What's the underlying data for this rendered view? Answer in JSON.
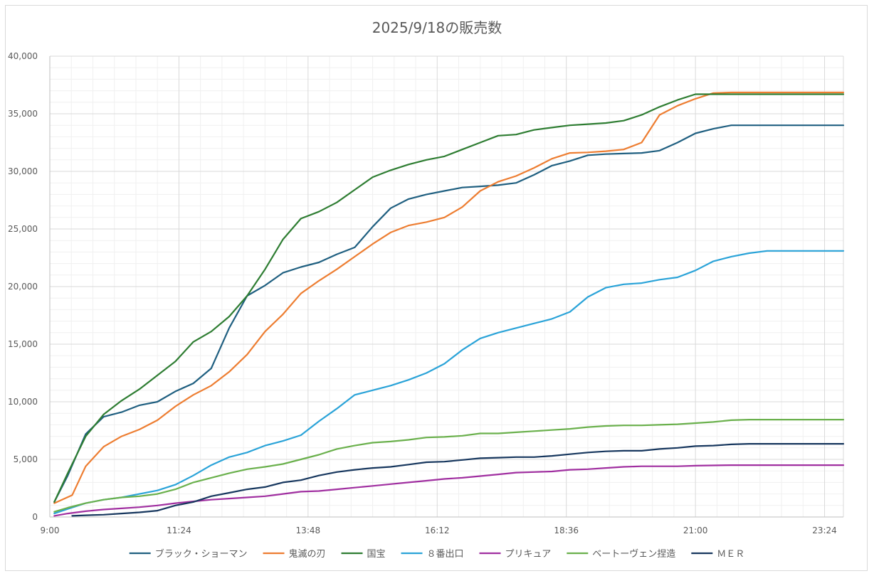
{
  "chart_data": {
    "type": "line",
    "title": "2025/9/18の販売数",
    "xlabel": "",
    "ylabel": "",
    "ylim": [
      0,
      40000
    ],
    "y_ticks": [
      "0",
      "5,000",
      "10,000",
      "15,000",
      "20,000",
      "25,000",
      "30,000",
      "35,000",
      "40,000"
    ],
    "x_ticks": [
      {
        "label": "9:00",
        "t": 0
      },
      {
        "label": "11:24",
        "t": 144
      },
      {
        "label": "13:48",
        "t": 288
      },
      {
        "label": "16:12",
        "t": 432
      },
      {
        "label": "18:36",
        "t": 576
      },
      {
        "label": "21:00",
        "t": 720
      },
      {
        "label": "23:24",
        "t": 864
      }
    ],
    "x_range": [
      0,
      885
    ],
    "grid": true,
    "legend_position": "bottom",
    "series": [
      {
        "name": "ブラック・ショーマン",
        "color": "#1f5f80",
        "points": [
          [
            5,
            1300
          ],
          [
            20,
            3600
          ],
          [
            40,
            7200
          ],
          [
            60,
            8700
          ],
          [
            80,
            9100
          ],
          [
            100,
            9700
          ],
          [
            120,
            10000
          ],
          [
            140,
            10900
          ],
          [
            160,
            11600
          ],
          [
            180,
            12900
          ],
          [
            200,
            16400
          ],
          [
            220,
            19200
          ],
          [
            240,
            20100
          ],
          [
            260,
            21200
          ],
          [
            280,
            21700
          ],
          [
            300,
            22100
          ],
          [
            320,
            22800
          ],
          [
            340,
            23400
          ],
          [
            360,
            25200
          ],
          [
            380,
            26800
          ],
          [
            400,
            27600
          ],
          [
            420,
            28000
          ],
          [
            440,
            28300
          ],
          [
            460,
            28600
          ],
          [
            480,
            28700
          ],
          [
            500,
            28800
          ],
          [
            520,
            29000
          ],
          [
            540,
            29700
          ],
          [
            560,
            30500
          ],
          [
            580,
            30900
          ],
          [
            600,
            31400
          ],
          [
            620,
            31500
          ],
          [
            640,
            31550
          ],
          [
            660,
            31600
          ],
          [
            680,
            31800
          ],
          [
            700,
            32500
          ],
          [
            720,
            33300
          ],
          [
            740,
            33700
          ],
          [
            760,
            34000
          ],
          [
            780,
            34000
          ],
          [
            800,
            34000
          ],
          [
            885,
            34000
          ]
        ]
      },
      {
        "name": "鬼滅の刃",
        "color": "#ed7d31",
        "points": [
          [
            5,
            1200
          ],
          [
            25,
            1900
          ],
          [
            40,
            4400
          ],
          [
            60,
            6100
          ],
          [
            80,
            7000
          ],
          [
            100,
            7600
          ],
          [
            120,
            8400
          ],
          [
            140,
            9600
          ],
          [
            160,
            10600
          ],
          [
            180,
            11400
          ],
          [
            200,
            12600
          ],
          [
            220,
            14100
          ],
          [
            240,
            16100
          ],
          [
            260,
            17600
          ],
          [
            280,
            19400
          ],
          [
            300,
            20500
          ],
          [
            320,
            21500
          ],
          [
            340,
            22600
          ],
          [
            360,
            23700
          ],
          [
            380,
            24700
          ],
          [
            400,
            25300
          ],
          [
            420,
            25600
          ],
          [
            440,
            26000
          ],
          [
            460,
            26900
          ],
          [
            480,
            28300
          ],
          [
            500,
            29100
          ],
          [
            520,
            29600
          ],
          [
            540,
            30300
          ],
          [
            560,
            31100
          ],
          [
            580,
            31600
          ],
          [
            600,
            31650
          ],
          [
            620,
            31750
          ],
          [
            640,
            31900
          ],
          [
            660,
            32500
          ],
          [
            680,
            34900
          ],
          [
            700,
            35700
          ],
          [
            720,
            36300
          ],
          [
            740,
            36800
          ],
          [
            760,
            36850
          ],
          [
            800,
            36850
          ],
          [
            885,
            36850
          ]
        ]
      },
      {
        "name": "国宝",
        "color": "#2e7d32",
        "points": [
          [
            5,
            1300
          ],
          [
            20,
            3800
          ],
          [
            40,
            7000
          ],
          [
            60,
            8900
          ],
          [
            80,
            10100
          ],
          [
            100,
            11100
          ],
          [
            120,
            12300
          ],
          [
            140,
            13500
          ],
          [
            160,
            15200
          ],
          [
            180,
            16100
          ],
          [
            200,
            17400
          ],
          [
            220,
            19200
          ],
          [
            240,
            21500
          ],
          [
            260,
            24100
          ],
          [
            280,
            25900
          ],
          [
            300,
            26500
          ],
          [
            320,
            27300
          ],
          [
            340,
            28400
          ],
          [
            360,
            29500
          ],
          [
            380,
            30100
          ],
          [
            400,
            30600
          ],
          [
            420,
            31000
          ],
          [
            440,
            31300
          ],
          [
            460,
            31900
          ],
          [
            480,
            32500
          ],
          [
            500,
            33100
          ],
          [
            520,
            33200
          ],
          [
            540,
            33600
          ],
          [
            560,
            33800
          ],
          [
            580,
            34000
          ],
          [
            600,
            34100
          ],
          [
            620,
            34200
          ],
          [
            640,
            34400
          ],
          [
            660,
            34900
          ],
          [
            680,
            35600
          ],
          [
            700,
            36200
          ],
          [
            720,
            36700
          ],
          [
            760,
            36700
          ],
          [
            800,
            36700
          ],
          [
            885,
            36700
          ]
        ]
      },
      {
        "name": "８番出口",
        "color": "#2aa3d8",
        "points": [
          [
            5,
            300
          ],
          [
            20,
            700
          ],
          [
            40,
            1200
          ],
          [
            60,
            1500
          ],
          [
            80,
            1700
          ],
          [
            100,
            2000
          ],
          [
            120,
            2300
          ],
          [
            140,
            2800
          ],
          [
            160,
            3600
          ],
          [
            180,
            4500
          ],
          [
            200,
            5200
          ],
          [
            220,
            5600
          ],
          [
            240,
            6200
          ],
          [
            260,
            6600
          ],
          [
            280,
            7100
          ],
          [
            300,
            8300
          ],
          [
            320,
            9400
          ],
          [
            340,
            10600
          ],
          [
            360,
            11000
          ],
          [
            380,
            11400
          ],
          [
            400,
            11900
          ],
          [
            420,
            12500
          ],
          [
            440,
            13300
          ],
          [
            460,
            14500
          ],
          [
            480,
            15500
          ],
          [
            500,
            16000
          ],
          [
            520,
            16400
          ],
          [
            540,
            16800
          ],
          [
            560,
            17200
          ],
          [
            580,
            17800
          ],
          [
            600,
            19100
          ],
          [
            620,
            19900
          ],
          [
            640,
            20200
          ],
          [
            660,
            20300
          ],
          [
            680,
            20600
          ],
          [
            700,
            20800
          ],
          [
            720,
            21400
          ],
          [
            740,
            22200
          ],
          [
            760,
            22600
          ],
          [
            780,
            22900
          ],
          [
            800,
            23100
          ],
          [
            885,
            23100
          ]
        ]
      },
      {
        "name": "プリキュア",
        "color": "#a02fa0",
        "points": [
          [
            5,
            100
          ],
          [
            20,
            300
          ],
          [
            40,
            500
          ],
          [
            60,
            650
          ],
          [
            80,
            750
          ],
          [
            100,
            850
          ],
          [
            120,
            1000
          ],
          [
            140,
            1200
          ],
          [
            160,
            1350
          ],
          [
            180,
            1500
          ],
          [
            200,
            1600
          ],
          [
            220,
            1700
          ],
          [
            240,
            1800
          ],
          [
            260,
            2000
          ],
          [
            280,
            2200
          ],
          [
            300,
            2250
          ],
          [
            320,
            2400
          ],
          [
            340,
            2550
          ],
          [
            360,
            2700
          ],
          [
            380,
            2850
          ],
          [
            400,
            3000
          ],
          [
            420,
            3150
          ],
          [
            440,
            3300
          ],
          [
            460,
            3400
          ],
          [
            480,
            3550
          ],
          [
            500,
            3700
          ],
          [
            520,
            3850
          ],
          [
            540,
            3900
          ],
          [
            560,
            3950
          ],
          [
            580,
            4100
          ],
          [
            600,
            4150
          ],
          [
            620,
            4250
          ],
          [
            640,
            4350
          ],
          [
            660,
            4400
          ],
          [
            680,
            4400
          ],
          [
            700,
            4400
          ],
          [
            720,
            4450
          ],
          [
            760,
            4500
          ],
          [
            800,
            4500
          ],
          [
            885,
            4500
          ]
        ]
      },
      {
        "name": "ベートーヴェン捏造",
        "color": "#6ab04c",
        "points": [
          [
            5,
            450
          ],
          [
            20,
            800
          ],
          [
            40,
            1200
          ],
          [
            60,
            1500
          ],
          [
            80,
            1700
          ],
          [
            100,
            1800
          ],
          [
            120,
            2000
          ],
          [
            140,
            2400
          ],
          [
            160,
            3000
          ],
          [
            180,
            3400
          ],
          [
            200,
            3800
          ],
          [
            220,
            4150
          ],
          [
            240,
            4350
          ],
          [
            260,
            4600
          ],
          [
            280,
            5000
          ],
          [
            300,
            5400
          ],
          [
            320,
            5900
          ],
          [
            340,
            6200
          ],
          [
            360,
            6450
          ],
          [
            380,
            6550
          ],
          [
            400,
            6700
          ],
          [
            420,
            6900
          ],
          [
            440,
            6950
          ],
          [
            460,
            7050
          ],
          [
            480,
            7250
          ],
          [
            500,
            7250
          ],
          [
            520,
            7350
          ],
          [
            540,
            7450
          ],
          [
            560,
            7550
          ],
          [
            580,
            7650
          ],
          [
            600,
            7800
          ],
          [
            620,
            7900
          ],
          [
            640,
            7950
          ],
          [
            660,
            7950
          ],
          [
            680,
            8000
          ],
          [
            700,
            8050
          ],
          [
            720,
            8150
          ],
          [
            740,
            8250
          ],
          [
            760,
            8400
          ],
          [
            780,
            8450
          ],
          [
            800,
            8450
          ],
          [
            885,
            8450
          ]
        ]
      },
      {
        "name": "ＭＥＲ",
        "color": "#17375e",
        "points": [
          [
            25,
            100
          ],
          [
            40,
            150
          ],
          [
            60,
            200
          ],
          [
            80,
            300
          ],
          [
            100,
            400
          ],
          [
            120,
            550
          ],
          [
            140,
            1000
          ],
          [
            160,
            1300
          ],
          [
            180,
            1800
          ],
          [
            200,
            2100
          ],
          [
            220,
            2400
          ],
          [
            240,
            2600
          ],
          [
            260,
            3000
          ],
          [
            280,
            3200
          ],
          [
            300,
            3600
          ],
          [
            320,
            3900
          ],
          [
            340,
            4100
          ],
          [
            360,
            4250
          ],
          [
            380,
            4350
          ],
          [
            400,
            4550
          ],
          [
            420,
            4750
          ],
          [
            440,
            4800
          ],
          [
            460,
            4950
          ],
          [
            480,
            5100
          ],
          [
            500,
            5150
          ],
          [
            520,
            5200
          ],
          [
            540,
            5200
          ],
          [
            560,
            5300
          ],
          [
            580,
            5450
          ],
          [
            600,
            5600
          ],
          [
            620,
            5700
          ],
          [
            640,
            5750
          ],
          [
            660,
            5750
          ],
          [
            680,
            5900
          ],
          [
            700,
            6000
          ],
          [
            720,
            6150
          ],
          [
            740,
            6200
          ],
          [
            760,
            6300
          ],
          [
            780,
            6350
          ],
          [
            800,
            6350
          ],
          [
            885,
            6350
          ]
        ]
      }
    ]
  }
}
